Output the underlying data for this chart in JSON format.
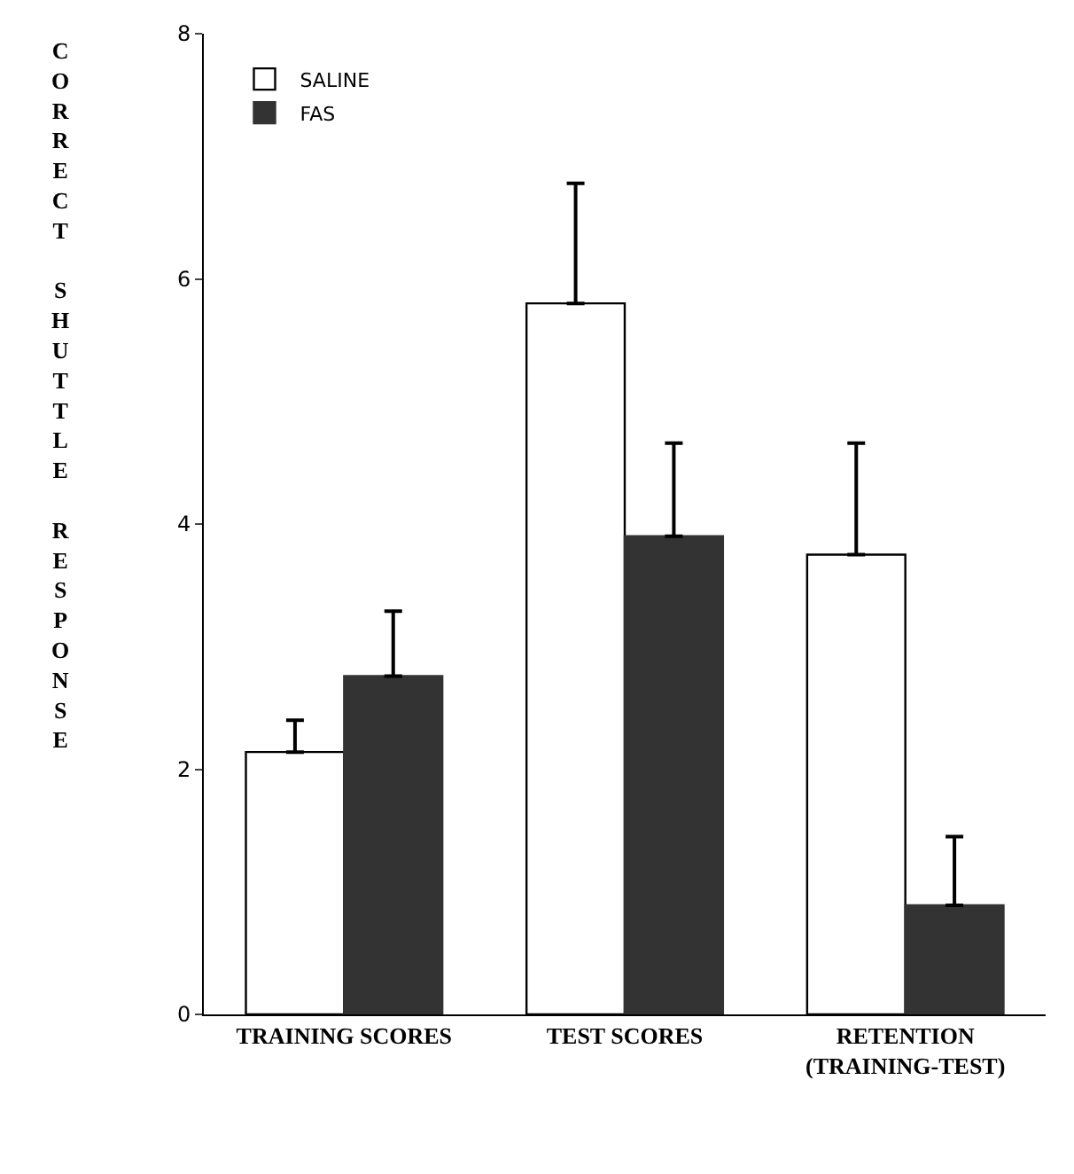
{
  "chart_data": {
    "type": "bar",
    "ylabel": "CORRECT SHUTTLE RESPONSE",
    "categories": [
      "TRAINING SCORES",
      "TEST SCORES",
      "RETENTION\n(TRAINING-TEST)"
    ],
    "series": [
      {
        "name": "SALINE",
        "color": "#ffffff",
        "values": [
          2.14,
          5.8,
          3.75
        ],
        "errors": [
          [
            2.14,
            2.4
          ],
          [
            5.8,
            6.78
          ],
          [
            3.75,
            4.66
          ]
        ]
      },
      {
        "name": "FAS",
        "color": "#333333",
        "values": [
          2.76,
          3.9,
          0.89
        ],
        "errors": [
          [
            2.76,
            3.29
          ],
          [
            3.9,
            4.66
          ],
          [
            0.89,
            1.45
          ]
        ]
      }
    ],
    "ylim": [
      0,
      8
    ],
    "yticks": [
      0,
      2,
      4,
      6,
      8
    ],
    "legend": "top left"
  }
}
